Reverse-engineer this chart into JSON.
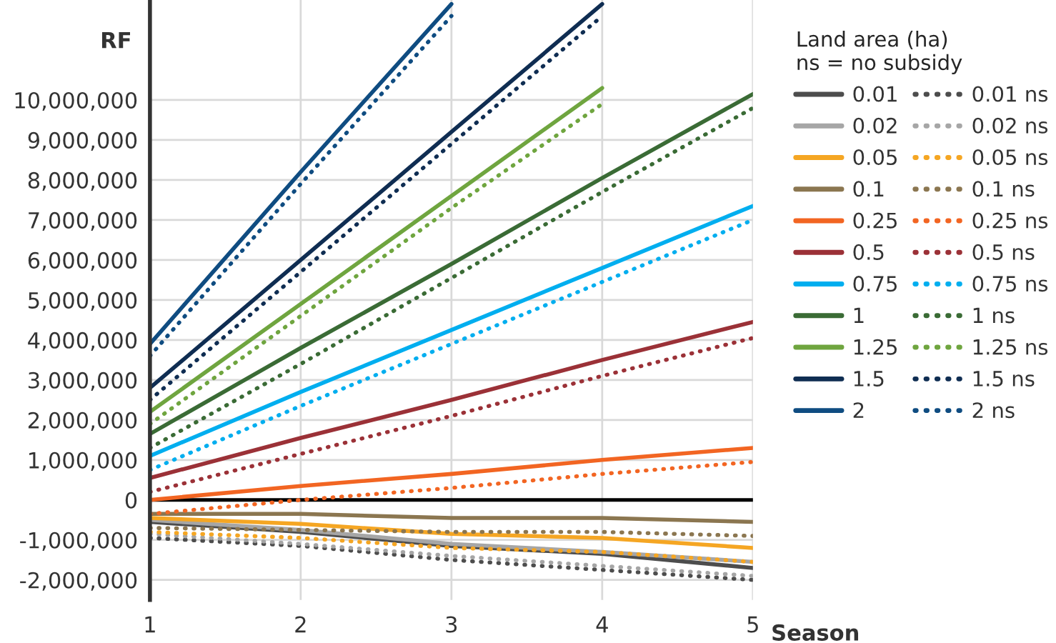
{
  "chart_data": {
    "type": "line",
    "ylabel": "RF",
    "xlabel": "Season",
    "legend_title": "Land area (ha)\nns = no subsidy",
    "x": [
      1,
      2,
      3,
      4,
      5
    ],
    "xlim": [
      1,
      5
    ],
    "xticks": [
      1,
      2,
      3,
      4,
      5
    ],
    "ylim": [
      -2500000,
      12500000
    ],
    "yticks": [
      {
        "value": -2000000,
        "label": "-2,000,000"
      },
      {
        "value": -1000000,
        "label": "-1,000,000"
      },
      {
        "value": 0,
        "label": "0"
      },
      {
        "value": 1000000,
        "label": "1,000,000"
      },
      {
        "value": 2000000,
        "label": "2,000,000"
      },
      {
        "value": 3000000,
        "label": "3,000,000"
      },
      {
        "value": 4000000,
        "label": "4,000,000"
      },
      {
        "value": 5000000,
        "label": "5,000,000"
      },
      {
        "value": 6000000,
        "label": "6,000,000"
      },
      {
        "value": 7000000,
        "label": "7,000,000"
      },
      {
        "value": 8000000,
        "label": "8,000,000"
      },
      {
        "value": 9000000,
        "label": "9,000,000"
      },
      {
        "value": 10000000,
        "label": "10,000,000"
      }
    ],
    "grid": true,
    "legend": "right",
    "marker": "none",
    "ref_lines": [
      {
        "axis": "y",
        "value": 0,
        "color": "#000000"
      }
    ],
    "series": [
      {
        "name": "0.01",
        "color": "#4d4d4d",
        "line_style": "solid",
        "values": [
          -550000,
          -800000,
          -1150000,
          -1350000,
          -1700000
        ]
      },
      {
        "name": "0.02",
        "color": "#a6a6a6",
        "line_style": "solid",
        "values": [
          -500000,
          -750000,
          -1100000,
          -1300000,
          -1550000
        ]
      },
      {
        "name": "0.05",
        "color": "#f5a623",
        "line_style": "solid",
        "values": [
          -450000,
          -600000,
          -850000,
          -950000,
          -1200000
        ]
      },
      {
        "name": "0.1",
        "color": "#8b7650",
        "line_style": "solid",
        "values": [
          -350000,
          -350000,
          -450000,
          -450000,
          -550000
        ]
      },
      {
        "name": "0.25",
        "color": "#f26522",
        "line_style": "solid",
        "values": [
          0,
          350000,
          650000,
          1000000,
          1300000
        ]
      },
      {
        "name": "0.5",
        "color": "#9b3137",
        "line_style": "solid",
        "values": [
          550000,
          1550000,
          2500000,
          3500000,
          4450000
        ]
      },
      {
        "name": "0.75",
        "color": "#00aeef",
        "line_style": "solid",
        "values": [
          1100000,
          2700000,
          4250000,
          5800000,
          7350000
        ]
      },
      {
        "name": "1",
        "color": "#3a6b35",
        "line_style": "solid",
        "values": [
          1650000,
          3800000,
          5900000,
          8050000,
          10150000
        ]
      },
      {
        "name": "1.25",
        "color": "#6fa53f",
        "line_style": "solid",
        "values": [
          2200000,
          4900000,
          7600000,
          10300000,
          null
        ]
      },
      {
        "name": "1.5",
        "color": "#0f2d52",
        "line_style": "solid",
        "values": [
          2800000,
          6000000,
          9200000,
          12400000,
          null
        ]
      },
      {
        "name": "2",
        "color": "#0f4c81",
        "line_style": "solid",
        "values": [
          3900000,
          8200000,
          12400000,
          null,
          null
        ]
      },
      {
        "name": "0.01 ns",
        "color": "#4d4d4d",
        "line_style": "dotted",
        "values": [
          -950000,
          -1150000,
          -1500000,
          -1750000,
          -2000000
        ]
      },
      {
        "name": "0.02 ns",
        "color": "#a6a6a6",
        "line_style": "dotted",
        "values": [
          -850000,
          -1100000,
          -1400000,
          -1650000,
          -1900000
        ]
      },
      {
        "name": "0.05 ns",
        "color": "#f5a623",
        "line_style": "dotted",
        "values": [
          -800000,
          -950000,
          -1200000,
          -1300000,
          -1550000
        ]
      },
      {
        "name": "0.1 ns",
        "color": "#8b7650",
        "line_style": "dotted",
        "values": [
          -700000,
          -750000,
          -800000,
          -800000,
          -900000
        ]
      },
      {
        "name": "0.25 ns",
        "color": "#f26522",
        "line_style": "dotted",
        "values": [
          -350000,
          0,
          300000,
          650000,
          950000
        ]
      },
      {
        "name": "0.5 ns",
        "color": "#9b3137",
        "line_style": "dotted",
        "values": [
          200000,
          1150000,
          2100000,
          3100000,
          4050000
        ]
      },
      {
        "name": "0.75 ns",
        "color": "#00aeef",
        "line_style": "dotted",
        "values": [
          750000,
          2350000,
          3900000,
          5450000,
          7000000
        ]
      },
      {
        "name": "1 ns",
        "color": "#3a6b35",
        "line_style": "dotted",
        "values": [
          1300000,
          3400000,
          5550000,
          7700000,
          9800000
        ]
      },
      {
        "name": "1.25 ns",
        "color": "#6fa53f",
        "line_style": "dotted",
        "values": [
          1900000,
          4600000,
          7300000,
          9900000,
          null
        ]
      },
      {
        "name": "1.5 ns",
        "color": "#0f2d52",
        "line_style": "dotted",
        "values": [
          2500000,
          5700000,
          8900000,
          12100000,
          null
        ]
      },
      {
        "name": "2 ns",
        "color": "#0f4c81",
        "line_style": "dotted",
        "values": [
          3600000,
          7900000,
          12100000,
          null,
          null
        ]
      }
    ]
  }
}
